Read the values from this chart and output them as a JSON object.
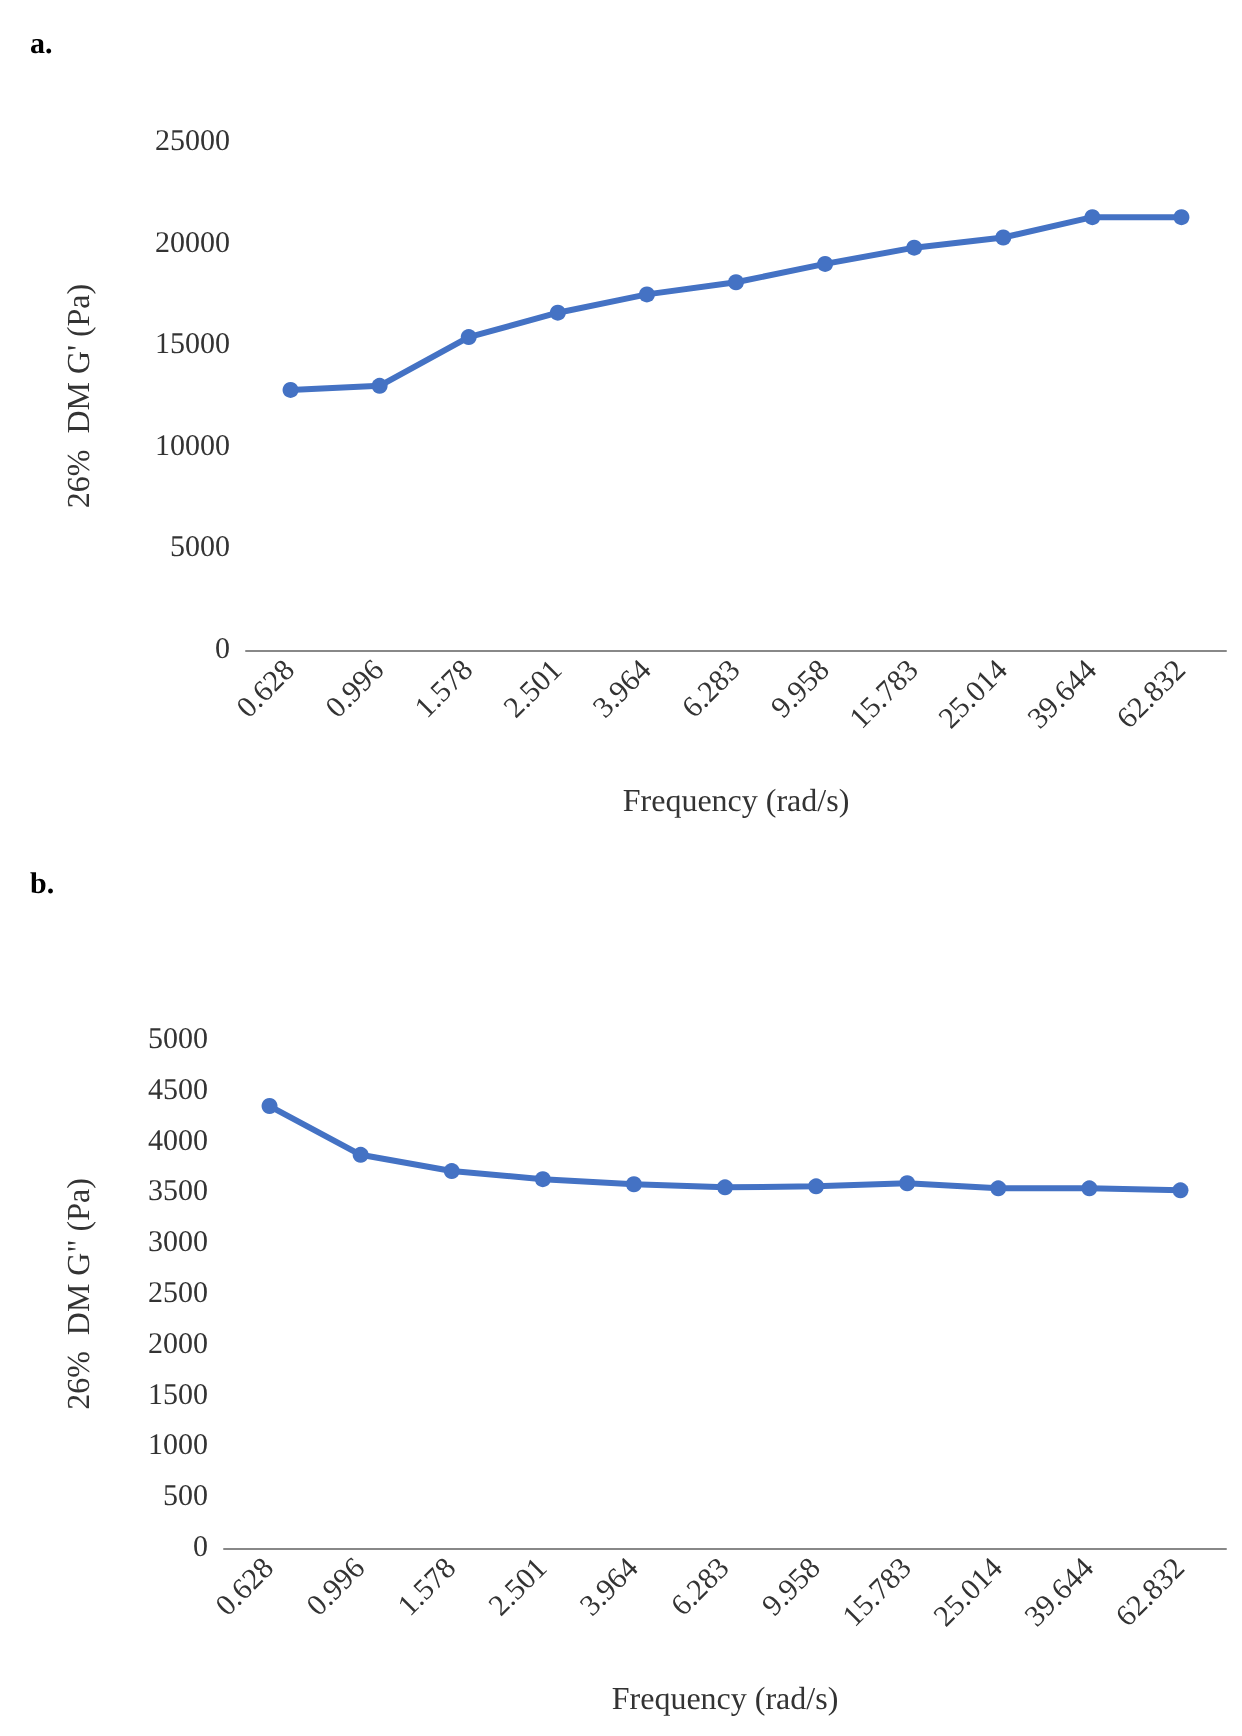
{
  "chart_data": [
    {
      "type": "line",
      "title": "a.",
      "xlabel": "Frequency (rad/s)",
      "ylabel": "26%  DM G' (Pa)",
      "categories": [
        "0.628",
        "0.996",
        "1.578",
        "2.501",
        "3.964",
        "6.283",
        "9.958",
        "15.783",
        "25.014",
        "39.644",
        "62.832"
      ],
      "series": [
        {
          "color": "#4472c4",
          "values": [
            12800,
            13000,
            15400,
            16600,
            17500,
            18100,
            19000,
            19800,
            20300,
            21300,
            21300
          ]
        }
      ],
      "ylim": [
        0,
        25000
      ],
      "yticks": [
        0,
        5000,
        10000,
        15000,
        20000,
        25000
      ],
      "marker": "circle",
      "line_style": "solid"
    },
    {
      "type": "line",
      "title": "b.",
      "xlabel": "Frequency (rad/s)",
      "ylabel": "26%  DM G\" (Pa)",
      "categories": [
        "0.628",
        "0.996",
        "1.578",
        "2.501",
        "3.964",
        "6.283",
        "9.958",
        "15.783",
        "25.014",
        "39.644",
        "62.832"
      ],
      "series": [
        {
          "color": "#4472c4",
          "values": [
            4350,
            3870,
            3710,
            3630,
            3580,
            3550,
            3560,
            3590,
            3540,
            3540,
            3520
          ]
        }
      ],
      "ylim": [
        0,
        5000
      ],
      "yticks": [
        0,
        500,
        1000,
        1500,
        2000,
        2500,
        3000,
        3500,
        4000,
        4500,
        5000
      ],
      "marker": "circle",
      "line_style": "solid"
    }
  ]
}
